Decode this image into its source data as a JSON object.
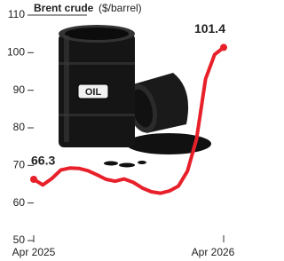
{
  "chart_data": {
    "type": "line",
    "title": "Brent crude",
    "subtitle": "($/barrel)",
    "annotation": "OIL",
    "categories": [
      "Apr 2025",
      null,
      null,
      null,
      null,
      null,
      null,
      null,
      null,
      null,
      null,
      null,
      null,
      null,
      null,
      null,
      null,
      null,
      null,
      null,
      null,
      "Apr 2026"
    ],
    "values": [
      66.3,
      64.8,
      66.5,
      68.8,
      69.3,
      69.2,
      68.6,
      67.5,
      66.3,
      65.8,
      66.4,
      65.5,
      64.0,
      63.0,
      62.6,
      63.2,
      64.5,
      68.5,
      77,
      93,
      99.5,
      101.4
    ],
    "value_labels": [
      "66.3",
      null,
      null,
      null,
      null,
      null,
      null,
      null,
      null,
      null,
      null,
      null,
      null,
      null,
      null,
      null,
      null,
      null,
      null,
      null,
      null,
      "101.4"
    ],
    "color": "#e8202a",
    "ylim": [
      50,
      110
    ],
    "yticks": [
      50,
      60,
      70,
      80,
      90,
      100,
      110
    ],
    "grid": false
  }
}
